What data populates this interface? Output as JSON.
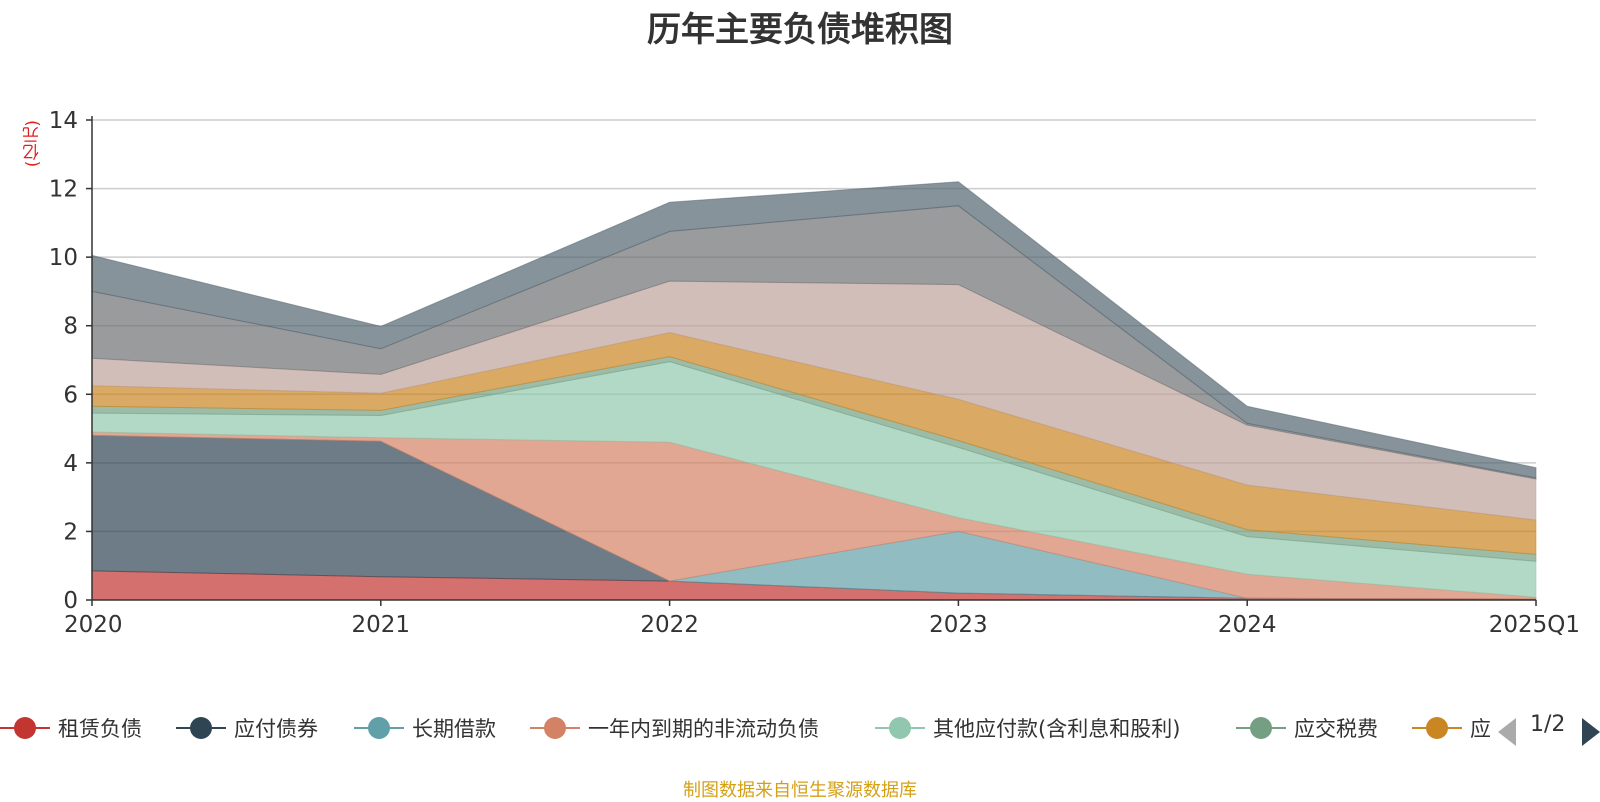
{
  "title": "历年主要负债堆积图",
  "unit_label": "(亿元)",
  "source_text": "制图数据来自恒生聚源数据库",
  "legend": {
    "page_text": "1/2",
    "prev_icon": "triangle-left-icon",
    "next_icon": "triangle-right-icon"
  },
  "chart_data": {
    "type": "area",
    "stacked": true,
    "title": "历年主要负债堆积图",
    "ylabel": "(亿元)",
    "ylim": [
      0,
      14
    ],
    "yticks": [
      0,
      2,
      4,
      6,
      8,
      10,
      12,
      14
    ],
    "grid": true,
    "legend_position": "bottom",
    "categories": [
      "2020",
      "2021",
      "2022",
      "2023",
      "2024",
      "2025Q1"
    ],
    "series": [
      {
        "name": "租赁负债",
        "color": "#c23531",
        "values": [
          0.85,
          0.68,
          0.55,
          0.2,
          0.05,
          0.03
        ]
      },
      {
        "name": "应付债券",
        "color": "#2f4554",
        "values": [
          3.95,
          3.95,
          0.0,
          0.0,
          0.0,
          0.0
        ]
      },
      {
        "name": "长期借款",
        "color": "#61a0a8",
        "values": [
          0.0,
          0.0,
          0.0,
          1.8,
          0.0,
          0.0
        ]
      },
      {
        "name": "一年内到期的非流动负债",
        "color": "#d48265",
        "values": [
          0.1,
          0.1,
          4.05,
          0.4,
          0.7,
          0.05
        ]
      },
      {
        "name": "其他应付款(含利息和股利)",
        "color": "#91c7ae",
        "values": [
          0.55,
          0.65,
          2.35,
          2.05,
          1.1,
          1.05
        ]
      },
      {
        "name": "应交税费",
        "color": "#749f83",
        "values": [
          0.2,
          0.15,
          0.15,
          0.2,
          0.2,
          0.2
        ]
      },
      {
        "name": "应付账款",
        "color": "#ca8622",
        "values": [
          0.6,
          0.5,
          0.7,
          1.2,
          1.3,
          1.0
        ]
      },
      {
        "name": "",
        "color": "#bda29a",
        "values": [
          0.8,
          0.55,
          1.5,
          3.35,
          1.75,
          1.2
        ]
      },
      {
        "name": "",
        "color": "#6e7074",
        "values": [
          1.95,
          0.75,
          1.45,
          2.3,
          0.05,
          0.03
        ]
      },
      {
        "name": "",
        "color": "#546570",
        "values": [
          1.05,
          0.65,
          0.85,
          0.7,
          0.5,
          0.3
        ]
      }
    ]
  }
}
